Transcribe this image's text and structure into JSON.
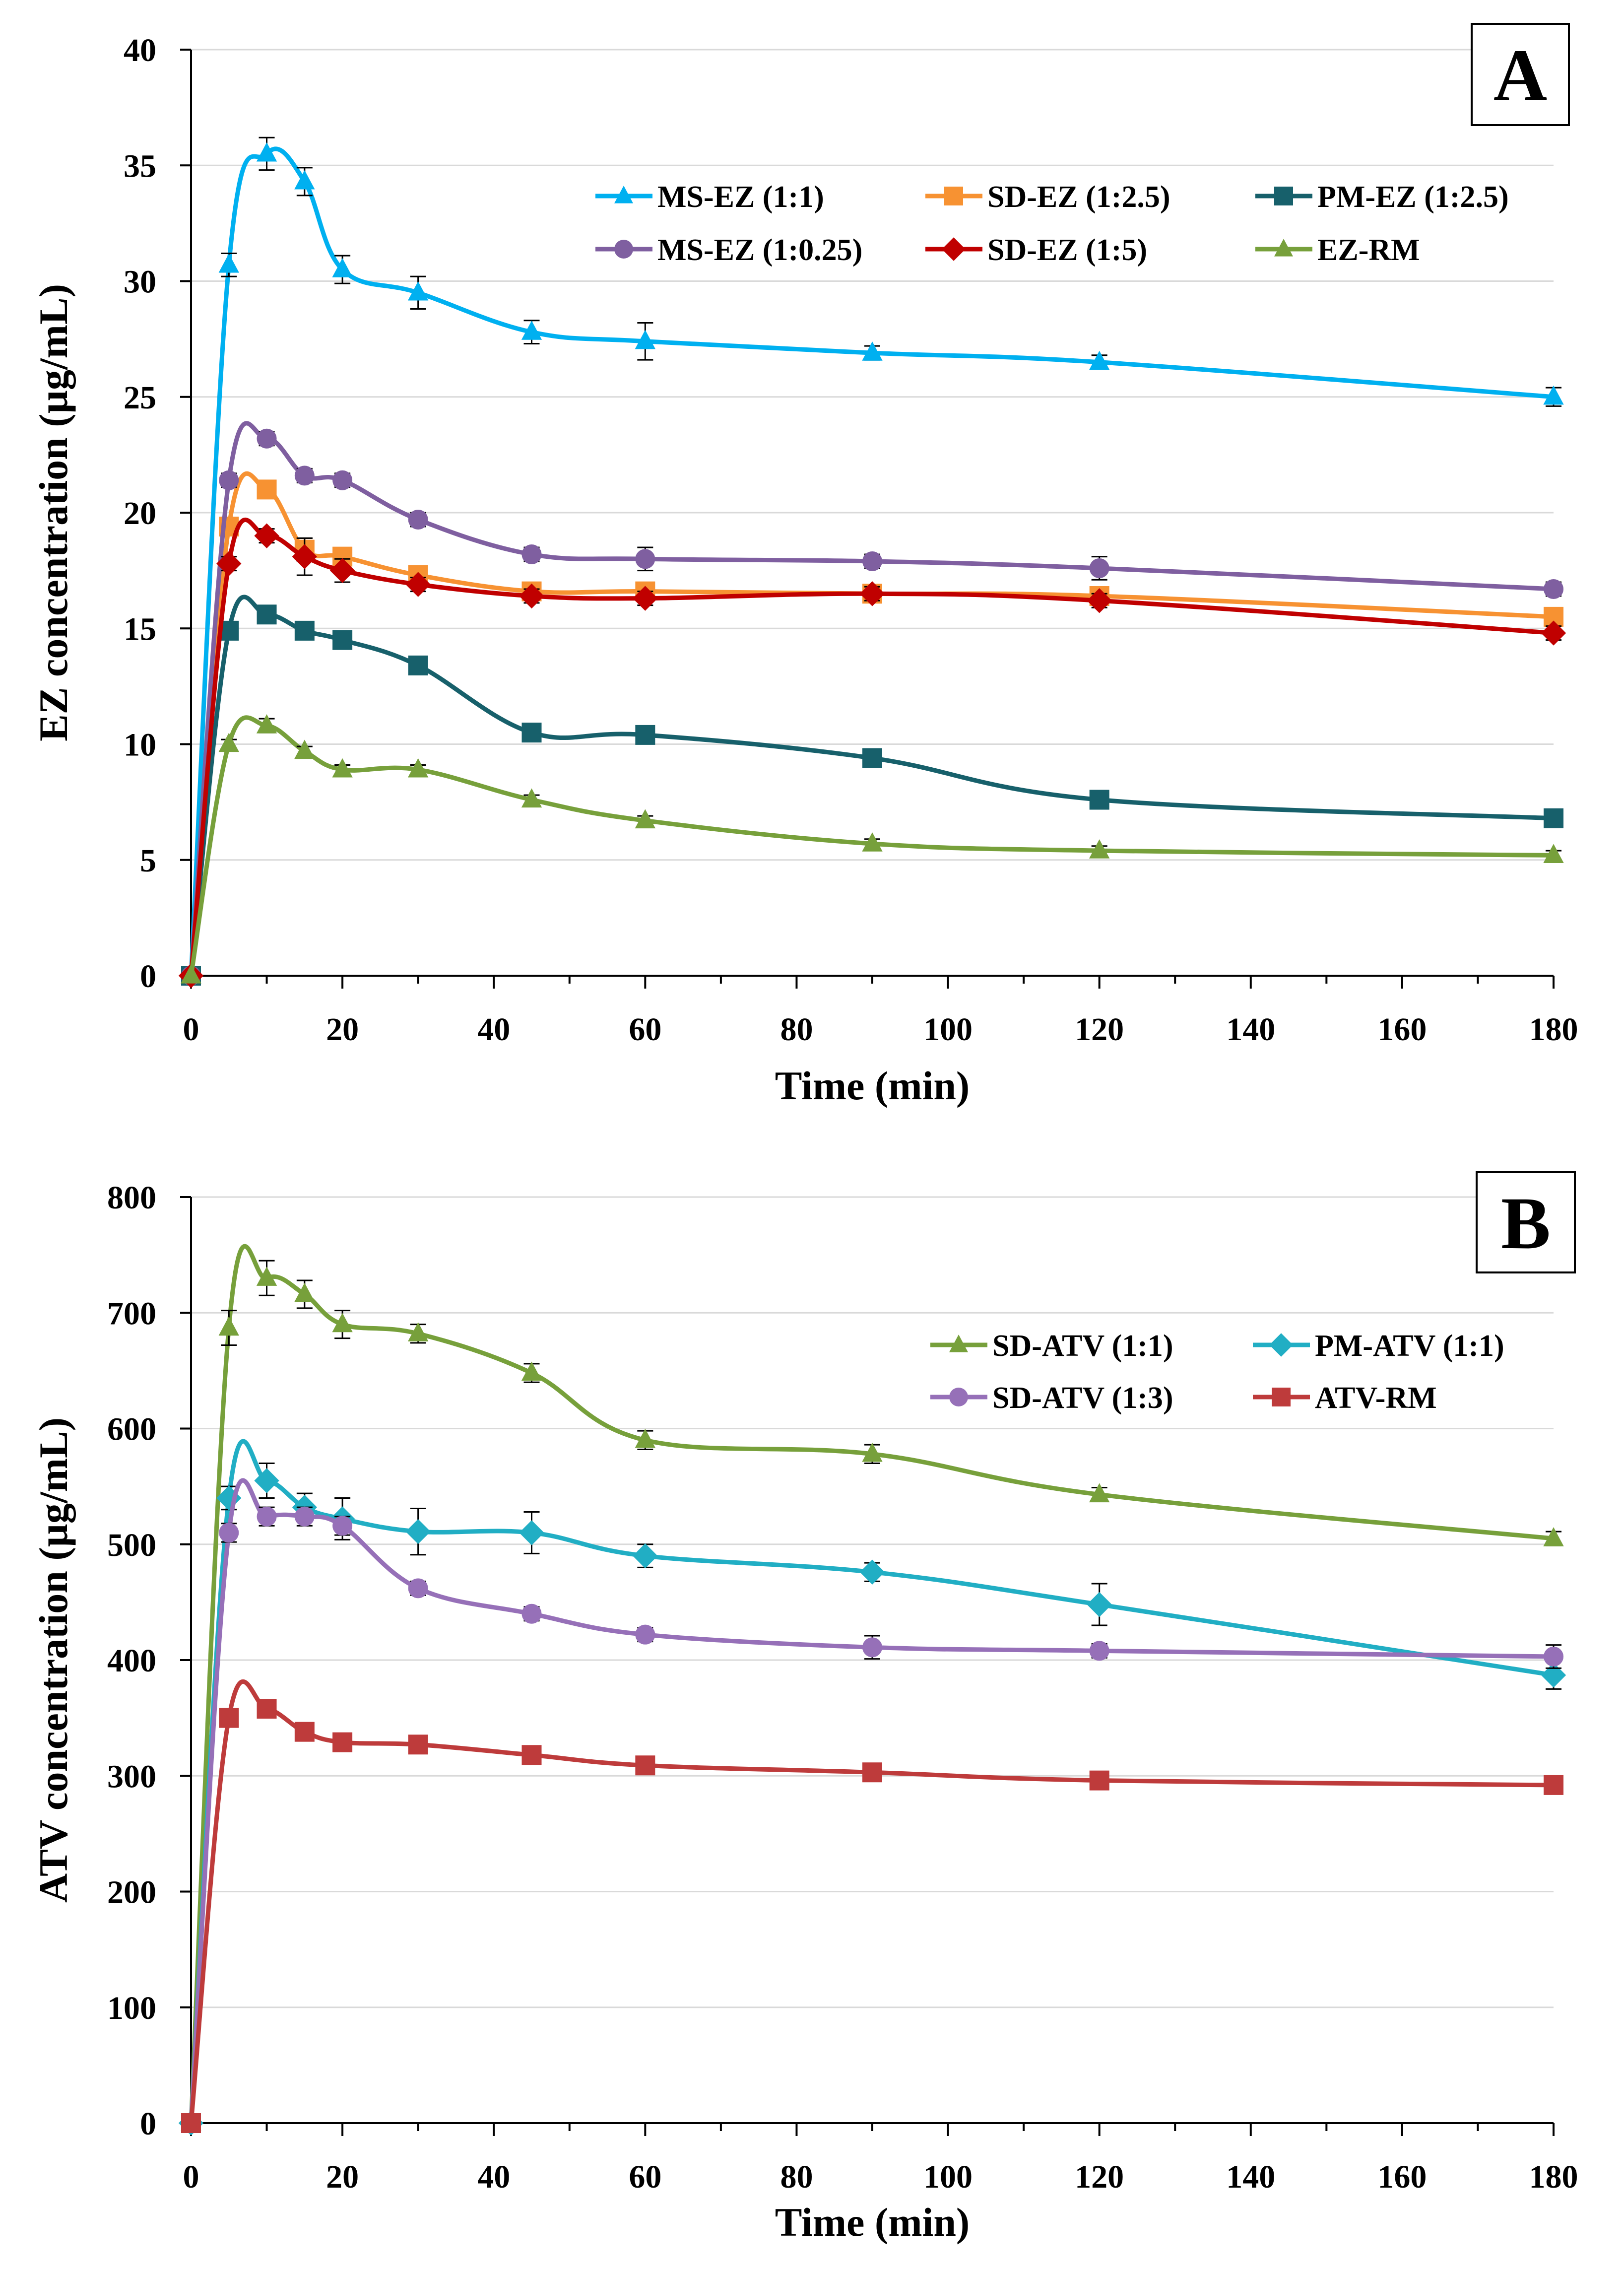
{
  "chart_data": [
    {
      "type": "line",
      "panel": "A",
      "xlabel": "Time (min)",
      "ylabel": "EZ concentration (µg/mL)",
      "xlim": [
        0,
        180
      ],
      "ylim": [
        0,
        40
      ],
      "xticks": [
        0,
        20,
        40,
        60,
        80,
        100,
        120,
        140,
        160,
        180
      ],
      "yticks": [
        0,
        5,
        10,
        15,
        20,
        25,
        30,
        35,
        40
      ],
      "x": [
        0,
        5,
        10,
        15,
        20,
        30,
        45,
        60,
        90,
        120,
        180
      ],
      "grid": "horizontal",
      "legend_position": "top-right",
      "series": [
        {
          "name": "MS-EZ (1:1)",
          "color": "#00b0f0",
          "marker": "triangle",
          "values": [
            0,
            30.7,
            35.5,
            34.3,
            30.5,
            29.5,
            27.8,
            27.4,
            26.9,
            26.5,
            25.0
          ],
          "errors": [
            0,
            0.5,
            0.7,
            0.6,
            0.6,
            0.7,
            0.5,
            0.8,
            0.3,
            0.3,
            0.4
          ]
        },
        {
          "name": "SD-EZ (1:2.5)",
          "color": "#f79232",
          "marker": "square",
          "values": [
            0,
            19.4,
            21.0,
            18.4,
            18.1,
            17.3,
            16.6,
            16.6,
            16.5,
            16.4,
            15.5
          ],
          "errors": [
            0,
            0.3,
            0.3,
            0.5,
            0.3,
            0.3,
            0.3,
            0.3,
            0.3,
            0.3,
            0.2
          ]
        },
        {
          "name": "PM-EZ (1:2.5)",
          "color": "#17606b",
          "marker": "square",
          "values": [
            0,
            14.9,
            15.6,
            14.9,
            14.5,
            13.4,
            10.5,
            10.4,
            9.4,
            7.6,
            6.8
          ],
          "errors": [
            0,
            0.3,
            0.3,
            0.3,
            0.3,
            0.3,
            0.3,
            0.3,
            0.3,
            0.3,
            0.2
          ]
        },
        {
          "name": "MS-EZ (1:0.25)",
          "color": "#7f5fa0",
          "marker": "circle",
          "values": [
            0,
            21.4,
            23.2,
            21.6,
            21.4,
            19.7,
            18.2,
            18.0,
            17.9,
            17.6,
            16.7
          ],
          "errors": [
            0,
            0.3,
            0.3,
            0.3,
            0.3,
            0.3,
            0.3,
            0.5,
            0.3,
            0.5,
            0.3
          ]
        },
        {
          "name": "SD-EZ (1:5)",
          "color": "#c00000",
          "marker": "diamond",
          "values": [
            0,
            17.8,
            19.0,
            18.1,
            17.5,
            16.9,
            16.4,
            16.3,
            16.5,
            16.2,
            14.8
          ],
          "errors": [
            0,
            0.3,
            0.3,
            0.8,
            0.5,
            0.3,
            0.3,
            0.3,
            0.3,
            0.3,
            0.3
          ]
        },
        {
          "name": "EZ-RM",
          "color": "#77a03b",
          "marker": "triangle",
          "values": [
            0,
            10.0,
            10.8,
            9.7,
            8.9,
            8.9,
            7.6,
            6.7,
            5.7,
            5.4,
            5.2
          ],
          "errors": [
            0,
            0.2,
            0.3,
            0.2,
            0.2,
            0.2,
            0.2,
            0.2,
            0.2,
            0.2,
            0.2
          ]
        }
      ]
    },
    {
      "type": "line",
      "panel": "B",
      "xlabel": "Time (min)",
      "ylabel": "ATV concentration (µg/mL)",
      "xlim": [
        0,
        180
      ],
      "ylim": [
        0,
        800
      ],
      "xticks": [
        0,
        20,
        40,
        60,
        80,
        100,
        120,
        140,
        160,
        180
      ],
      "yticks": [
        0,
        100,
        200,
        300,
        400,
        500,
        600,
        700,
        800
      ],
      "x": [
        0,
        5,
        10,
        15,
        20,
        30,
        45,
        60,
        90,
        120,
        180
      ],
      "grid": "horizontal",
      "legend_position": "top-right",
      "series": [
        {
          "name": "SD-ATV (1:1)",
          "color": "#77a03b",
          "marker": "triangle",
          "values": [
            0,
            687,
            730,
            716,
            690,
            682,
            648,
            590,
            578,
            543,
            505
          ],
          "errors": [
            0,
            15,
            15,
            12,
            12,
            8,
            8,
            8,
            8,
            6,
            6
          ]
        },
        {
          "name": "PM-ATV (1:1)",
          "color": "#21aec4",
          "marker": "diamond",
          "values": [
            0,
            540,
            555,
            532,
            522,
            511,
            510,
            490,
            476,
            448,
            387
          ],
          "errors": [
            0,
            10,
            15,
            12,
            18,
            20,
            18,
            10,
            8,
            18,
            12
          ]
        },
        {
          "name": "SD-ATV (1:3)",
          "color": "#9670b8",
          "marker": "circle",
          "values": [
            0,
            510,
            524,
            524,
            516,
            462,
            440,
            422,
            411,
            408,
            403
          ],
          "errors": [
            0,
            8,
            8,
            8,
            8,
            6,
            6,
            6,
            10,
            6,
            10
          ]
        },
        {
          "name": "ATV-RM",
          "color": "#be3b3b",
          "marker": "square",
          "values": [
            0,
            350,
            358,
            338,
            329,
            327,
            318,
            309,
            303,
            296,
            292
          ],
          "errors": [
            0,
            6,
            6,
            6,
            6,
            5,
            5,
            5,
            5,
            5,
            5
          ]
        }
      ]
    }
  ],
  "panels": [
    {
      "letter": "A"
    },
    {
      "letter": "B"
    }
  ]
}
